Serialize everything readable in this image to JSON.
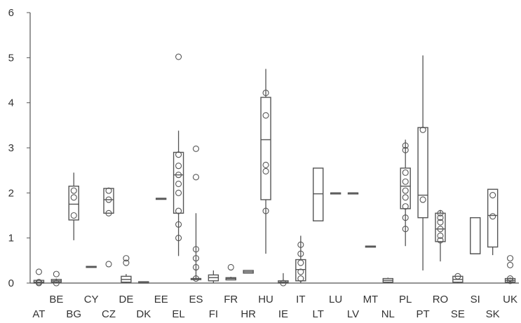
{
  "chart_data": {
    "type": "box",
    "title": "",
    "xlabel": "",
    "ylabel": "",
    "ylim": [
      0,
      6
    ],
    "yticks": [
      0,
      1,
      2,
      3,
      4,
      5,
      6
    ],
    "grid": false,
    "legend": "none",
    "colors": {
      "stroke": "#555555",
      "axis": "#555555",
      "text": "#333333"
    },
    "categories": [
      "AT",
      "BE",
      "BG",
      "CY",
      "CZ",
      "DE",
      "DK",
      "EE",
      "EL",
      "ES",
      "FI",
      "FR",
      "HR",
      "HU",
      "IE",
      "IT",
      "LT",
      "LU",
      "LV",
      "MT",
      "NL",
      "PL",
      "PT",
      "RO",
      "SE",
      "SI",
      "SK",
      "UK"
    ],
    "boxes": [
      {
        "category": "AT",
        "min": 0,
        "q1": 0,
        "median": 0.02,
        "q3": 0.06,
        "max": 0.06,
        "points": [
          0,
          0.02,
          0.25
        ]
      },
      {
        "category": "BE",
        "min": 0,
        "q1": 0.02,
        "median": 0.05,
        "q3": 0.08,
        "max": 0.1,
        "points": [
          0,
          0.2
        ]
      },
      {
        "category": "BG",
        "min": 0.95,
        "q1": 1.4,
        "median": 1.75,
        "q3": 2.15,
        "max": 2.45,
        "points": [
          1.5,
          1.9,
          2.05
        ]
      },
      {
        "category": "CY",
        "min": 0.37,
        "q1": 0.37,
        "median": 0.37,
        "q3": 0.37,
        "max": 0.37,
        "points": []
      },
      {
        "category": "CZ",
        "min": 1.55,
        "q1": 1.55,
        "median": 1.85,
        "q3": 2.1,
        "max": 2.1,
        "points": [
          0.42,
          1.55,
          1.85,
          2.05
        ]
      },
      {
        "category": "DE",
        "min": 0,
        "q1": 0.02,
        "median": 0.08,
        "q3": 0.15,
        "max": 0.2,
        "points": [
          0.45,
          0.55
        ]
      },
      {
        "category": "DK",
        "min": 0,
        "q1": 0,
        "median": 0.01,
        "q3": 0.03,
        "max": 0.03,
        "points": []
      },
      {
        "category": "EE",
        "min": 1.88,
        "q1": 1.88,
        "median": 1.88,
        "q3": 1.88,
        "max": 1.88,
        "points": []
      },
      {
        "category": "EL",
        "min": 0.6,
        "q1": 1.55,
        "median": 2.4,
        "q3": 2.9,
        "max": 3.38,
        "points": [
          1.0,
          1.3,
          1.6,
          2.0,
          2.2,
          2.4,
          2.6,
          2.85,
          5.02
        ]
      },
      {
        "category": "ES",
        "min": 0.1,
        "q1": 0.1,
        "median": 0.1,
        "q3": 0.1,
        "max": 1.55,
        "points": [
          0.1,
          0.35,
          0.55,
          0.75,
          2.35,
          2.98
        ]
      },
      {
        "category": "FI",
        "min": 0,
        "q1": 0.05,
        "median": 0.12,
        "q3": 0.18,
        "max": 0.28,
        "points": []
      },
      {
        "category": "FR",
        "min": 0.07,
        "q1": 0.07,
        "median": 0.1,
        "q3": 0.12,
        "max": 0.14,
        "points": [
          0.35
        ]
      },
      {
        "category": "HR",
        "min": 0.22,
        "q1": 0.22,
        "median": 0.25,
        "q3": 0.28,
        "max": 0.28,
        "points": []
      },
      {
        "category": "HU",
        "min": 0.65,
        "q1": 1.85,
        "median": 3.18,
        "q3": 4.12,
        "max": 4.75,
        "points": [
          1.6,
          2.48,
          2.62,
          3.72,
          4.22
        ]
      },
      {
        "category": "IE",
        "min": 0,
        "q1": 0,
        "median": 0.02,
        "q3": 0.05,
        "max": 0.22,
        "points": [
          0
        ]
      },
      {
        "category": "IT",
        "min": 0,
        "q1": 0.05,
        "median": 0.3,
        "q3": 0.52,
        "max": 1.05,
        "points": [
          0.1,
          0.25,
          0.45,
          0.65,
          0.85
        ]
      },
      {
        "category": "LT",
        "min": 1.38,
        "q1": 1.38,
        "median": 1.98,
        "q3": 2.55,
        "max": 2.55,
        "points": []
      },
      {
        "category": "LU",
        "min": 2.0,
        "q1": 2.0,
        "median": 2.0,
        "q3": 2.0,
        "max": 2.0,
        "points": []
      },
      {
        "category": "LV",
        "min": 2.0,
        "q1": 2.0,
        "median": 2.0,
        "q3": 2.0,
        "max": 2.0,
        "points": []
      },
      {
        "category": "MT",
        "min": 0.82,
        "q1": 0.82,
        "median": 0.82,
        "q3": 0.82,
        "max": 0.82,
        "points": []
      },
      {
        "category": "NL",
        "min": 0,
        "q1": 0.02,
        "median": 0.06,
        "q3": 0.1,
        "max": 0.12,
        "points": []
      },
      {
        "category": "PL",
        "min": 0.82,
        "q1": 1.65,
        "median": 2.15,
        "q3": 2.55,
        "max": 3.18,
        "points": [
          1.2,
          1.45,
          1.7,
          1.9,
          2.05,
          2.25,
          2.45,
          2.95,
          3.05
        ]
      },
      {
        "category": "PT",
        "min": 0.28,
        "q1": 1.45,
        "median": 1.95,
        "q3": 3.45,
        "max": 5.05,
        "points": [
          1.85,
          3.4
        ]
      },
      {
        "category": "RO",
        "min": 0.48,
        "q1": 0.92,
        "median": 1.2,
        "q3": 1.55,
        "max": 1.62,
        "points": [
          0.95,
          1.05,
          1.2,
          1.35,
          1.45,
          1.55
        ]
      },
      {
        "category": "SE",
        "min": 0,
        "q1": 0.02,
        "median": 0.08,
        "q3": 0.15,
        "max": 0.15,
        "points": [
          0.15
        ]
      },
      {
        "category": "SI",
        "min": 0.65,
        "q1": 0.65,
        "median": 0.65,
        "q3": 1.45,
        "max": 1.45,
        "points": []
      },
      {
        "category": "SK",
        "min": 0.62,
        "q1": 0.8,
        "median": 1.5,
        "q3": 2.08,
        "max": 2.08,
        "points": [
          1.48,
          1.95
        ]
      },
      {
        "category": "UK",
        "min": 0,
        "q1": 0.02,
        "median": 0.06,
        "q3": 0.1,
        "max": 0.12,
        "points": [
          0.05,
          0.1,
          0.4,
          0.55
        ]
      }
    ]
  }
}
